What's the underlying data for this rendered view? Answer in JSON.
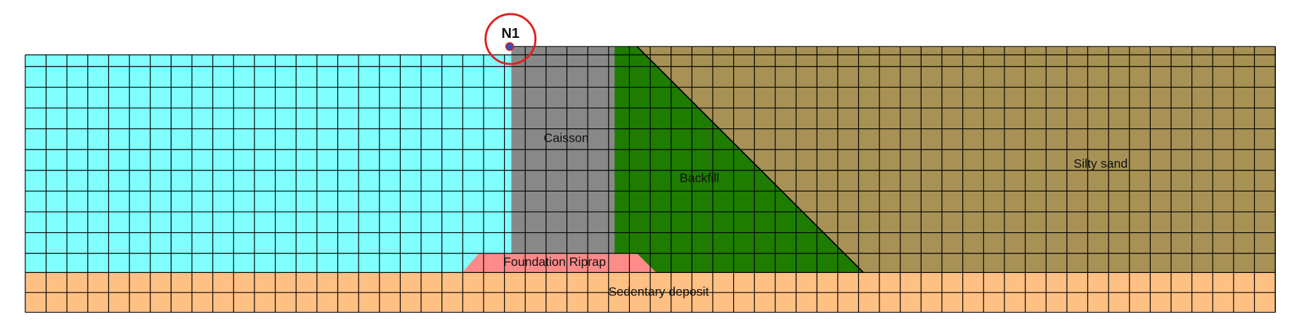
{
  "node": {
    "label": "N1"
  },
  "regions": {
    "caisson": "Caisson",
    "backfill": "Backfill",
    "silty_sand": "Silty sand",
    "foundation_riprap": "Foundation Riprap",
    "sedentary_deposit": "Sedentary deposit"
  }
}
